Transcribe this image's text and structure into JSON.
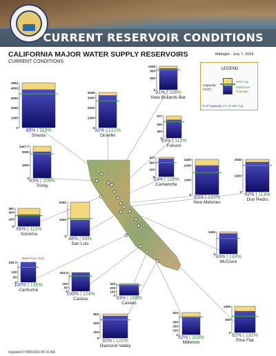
{
  "header": {
    "banner_title": "CURRENT RESERVOIR CONDITIONS",
    "seal_icon": "california-water-resources-seal",
    "seal_text": "DEPARTMENT OF WATER RESOURCES · STATE OF CALIFORNIA"
  },
  "title": "CALIFORNIA MAJOR WATER SUPPLY RESERVOIRS",
  "subtitle": "CURRENT CONDITIONS",
  "date_label": "Midnight - July 7, 2024",
  "updated": "Updated 07/08/2024 09:15 AM",
  "legend": {
    "title": "LEGEND",
    "capacity": "Capacity",
    "taf": "(TAF)",
    "hist_avg": "Hist Avg",
    "historical": "Historical",
    "average": "Average",
    "pct_capacity": "% of Capacity",
    "pct_hist_avg": "% of Hist Avg"
  },
  "colors": {
    "storage_fill": "#1a1a8a",
    "capacity_fill": "#f3d77c",
    "hist_avg_line": "#4aa04a",
    "pct_capacity_text": "#3a3aa8",
    "pct_hist_text": "#2f8a2f"
  },
  "chart_data": {
    "type": "bar",
    "title": "CALIFORNIA MAJOR WATER SUPPLY RESERVOIRS",
    "ylabel": "Capacity (TAF)",
    "series": [
      {
        "name": "% of Capacity",
        "values": [
          91,
          85,
          92,
          83,
          83,
          93,
          83,
          92,
          66,
          48,
          93,
          100,
          100,
          93,
          92,
          82,
          82
        ]
      },
      {
        "name": "% of Hist Avg",
        "values": [
          108,
          113,
          121,
          112,
          109,
          128,
          133,
          113,
          111,
          93,
          133,
          135,
          124,
          108,
          122,
          103,
          132
        ]
      }
    ],
    "reservoirs": [
      {
        "name": "New Bullards Bar",
        "capacity": 1000,
        "ticks": [
          0,
          500,
          800,
          1000
        ],
        "tick_labels": [
          "0",
          "500",
          "800",
          "1000"
        ],
        "pct_capacity": 91,
        "pct_hist_avg": 108,
        "label": "91% | 108%"
      },
      {
        "name": "Shasta",
        "capacity": 4552,
        "ticks": [
          0,
          1000,
          2000,
          3000,
          4000,
          4552
        ],
        "tick_labels": [
          "0",
          "1000",
          "2000",
          "3000",
          "4000",
          "4552"
        ],
        "pct_capacity": 85,
        "pct_hist_avg": 113,
        "label": "85% | 113%"
      },
      {
        "name": "Oroville",
        "capacity": 3538,
        "ticks": [
          0,
          1000,
          2000,
          3000,
          3538
        ],
        "tick_labels": [
          "0",
          "1000",
          "2000",
          "3000",
          "3538"
        ],
        "pct_capacity": 92,
        "pct_hist_avg": 121,
        "label": "92% | 121%"
      },
      {
        "name": "Folsom",
        "capacity": 977,
        "ticks": [
          0,
          300,
          600,
          977
        ],
        "tick_labels": [
          "0",
          "300",
          "600",
          "977"
        ],
        "pct_capacity": 83,
        "pct_hist_avg": 112,
        "label": "83% | 112%"
      },
      {
        "name": "Trinity",
        "capacity": 2447.7,
        "ticks": [
          0,
          1000,
          2000,
          2447.7
        ],
        "tick_labels": [
          "0",
          "1000",
          "2000",
          "2447.7"
        ],
        "pct_capacity": 83,
        "pct_hist_avg": 109,
        "label": "83% | 109%"
      },
      {
        "name": "Camanche",
        "capacity": 417,
        "ticks": [
          0,
          150,
          300,
          417
        ],
        "tick_labels": [
          "0",
          "150",
          "300",
          "417"
        ],
        "pct_capacity": 93,
        "pct_hist_avg": 128,
        "label": "93% | 128%"
      },
      {
        "name": "New Melones",
        "capacity": 2420,
        "ticks": [
          0,
          1000,
          2000,
          2420
        ],
        "tick_labels": [
          "0",
          "1000",
          "2000",
          "2420"
        ],
        "pct_capacity": 83,
        "pct_hist_avg": 133,
        "label": "83% | 133%"
      },
      {
        "name": "Don Pedro",
        "capacity": 2030,
        "ticks": [
          0,
          1000,
          2030
        ],
        "tick_labels": [
          "0",
          "1000",
          "2030"
        ],
        "pct_capacity": 92,
        "pct_hist_avg": 113,
        "label": "92% | 113%"
      },
      {
        "name": "Sonoma",
        "capacity": 381,
        "ticks": [
          0,
          150,
          300,
          381
        ],
        "tick_labels": [
          "0",
          "150",
          "300",
          "381"
        ],
        "pct_capacity": 66,
        "pct_hist_avg": 111,
        "label": "66% | 111%"
      },
      {
        "name": "San Luis",
        "capacity": 2041,
        "ticks": [
          0,
          1000,
          2041
        ],
        "tick_labels": [
          "0",
          "1000",
          "2041"
        ],
        "pct_capacity": 48,
        "pct_hist_avg": 93,
        "label": "48% | 93%"
      },
      {
        "name": "McClure",
        "capacity": 1025,
        "ticks": [
          0,
          1025
        ],
        "tick_labels": [
          "0",
          "1025"
        ],
        "pct_capacity": 93,
        "pct_hist_avg": 133,
        "label": "93% | 133%"
      },
      {
        "name": "Cachuma",
        "capacity": 193.3,
        "ticks": [
          0,
          50,
          100,
          193.3
        ],
        "tick_labels": [
          "0",
          "50",
          "100",
          "193.3"
        ],
        "pct_capacity": 100,
        "pct_hist_avg": 135,
        "label": "100% | 135%",
        "note": "Data From: Jul 6"
      },
      {
        "name": "Casitas",
        "capacity": 254.6,
        "ticks": [
          0,
          50,
          100,
          254.6
        ],
        "tick_labels": [
          "0",
          "50",
          "100",
          "254.6"
        ],
        "pct_capacity": 100,
        "pct_hist_avg": 124,
        "label": "100% | 124%"
      },
      {
        "name": "Castaic",
        "capacity": 320,
        "ticks": [
          0,
          100,
          200,
          320
        ],
        "tick_labels": [
          "0",
          "100",
          "200",
          "320"
        ],
        "pct_capacity": 93,
        "pct_hist_avg": 108,
        "label": "93% | 108%"
      },
      {
        "name": "Diamond Valley",
        "capacity": 800,
        "ticks": [
          0,
          200,
          500,
          800
        ],
        "tick_labels": [
          "0",
          "200",
          "500",
          "800"
        ],
        "pct_capacity": 92,
        "pct_hist_avg": 122,
        "label": "92% | 122%"
      },
      {
        "name": "Millerton",
        "capacity": 520,
        "ticks": [
          0,
          100,
          200,
          300,
          520
        ],
        "tick_labels": [
          "0",
          "100",
          "200",
          "300",
          "520"
        ],
        "pct_capacity": 82,
        "pct_hist_avg": 103,
        "label": "82% | 103%"
      },
      {
        "name": "Pine Flat",
        "capacity": 1000,
        "ticks": [
          0,
          500,
          1000
        ],
        "tick_labels": [
          "0",
          "500",
          "1000"
        ],
        "pct_capacity": 82,
        "pct_hist_avg": 132,
        "label": "82% | 132%"
      }
    ]
  }
}
